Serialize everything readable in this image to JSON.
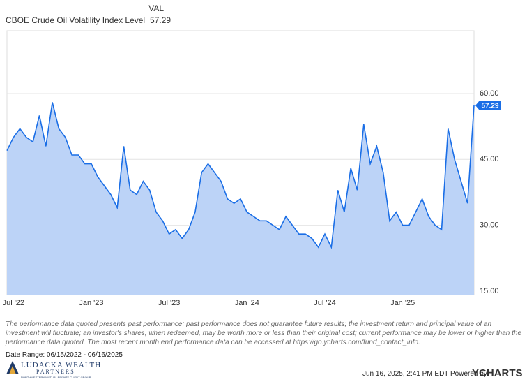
{
  "chart_data": {
    "type": "area",
    "header_label": "VAL",
    "series": [
      {
        "name": "CBOE Crude Oil Volatility Index Level",
        "color": "#1a6ee6",
        "fill": "#bcd3f7",
        "values": [
          47,
          50,
          52,
          50,
          49,
          55,
          48,
          58,
          52,
          50,
          46,
          46,
          44,
          44,
          41,
          39,
          37,
          34,
          48,
          38,
          37,
          40,
          38,
          33,
          31,
          28,
          29,
          27,
          29,
          33,
          42,
          44,
          42,
          40,
          36,
          35,
          36,
          33,
          32,
          31,
          31,
          30,
          29,
          32,
          30,
          28,
          28,
          27,
          25,
          28,
          25,
          38,
          33,
          43,
          38,
          53,
          44,
          48,
          42,
          31,
          33,
          30,
          30,
          33,
          36,
          32,
          30,
          29,
          52,
          45,
          40,
          35,
          57.29
        ]
      }
    ],
    "categories": [
      null,
      "Jul '22",
      null,
      null,
      null,
      null,
      null,
      null,
      null,
      null,
      null,
      null,
      null,
      "Jan '23",
      null,
      null,
      null,
      null,
      null,
      null,
      null,
      null,
      null,
      null,
      null,
      "Jul '23",
      null,
      null,
      null,
      null,
      null,
      null,
      null,
      null,
      null,
      null,
      null,
      "Jan '24",
      null,
      null,
      null,
      null,
      null,
      null,
      null,
      null,
      null,
      null,
      null,
      "Jul '24",
      null,
      null,
      null,
      null,
      null,
      null,
      null,
      null,
      null,
      null,
      null,
      "Jan '25",
      null,
      null,
      null,
      null,
      null,
      null,
      null,
      null,
      null,
      null,
      null
    ],
    "ylim": [
      14.2,
      74.3
    ],
    "yticks": [
      {
        "value": 15,
        "label": "15.00"
      },
      {
        "value": 30,
        "label": "30.00"
      },
      {
        "value": 45,
        "label": "45.00"
      },
      {
        "value": 60,
        "label": "60.00"
      }
    ],
    "grid": true
  },
  "footer": {
    "disclaimer": "The performance data quoted presents past performance; past performance does not guarantee future results; the investment return and principal value of an investment will fluctuate; an investor's shares, when redeemed, may be worth more or less than their original cost; current performance may be lower or higher than the performance data quoted. The most recent month end performance data can be accessed at https://go.ycharts.com/fund_contact_info.",
    "date_range": "Date Range: 06/15/2022 - 06/16/2025",
    "logo_line1": "LUDACKA WEALTH",
    "logo_line2": "PARTNERS",
    "logo_tagline": "NORTHWESTERN MUTUAL PRIVATE CLIENT GROUP",
    "timestamp": "Jun 16, 2025, 2:41 PM EDT Powered by",
    "brand": "YCHARTS"
  }
}
